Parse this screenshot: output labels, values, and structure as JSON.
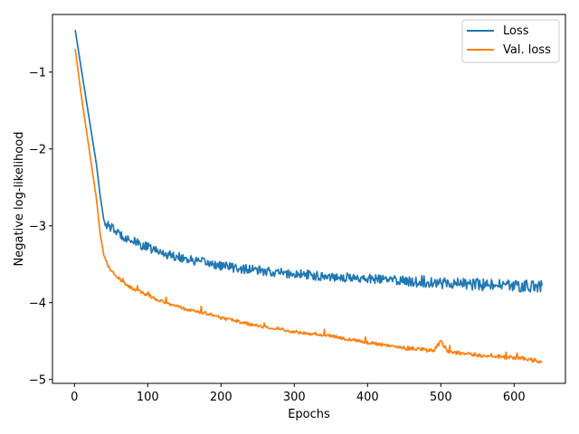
{
  "chart_data": {
    "type": "line",
    "title": "",
    "xlabel": "Epochs",
    "ylabel": "Negative log-likelihood",
    "xlim": [
      -30,
      670
    ],
    "ylim": [
      -5.05,
      -0.25
    ],
    "xticks": [
      0,
      100,
      200,
      300,
      400,
      500,
      600
    ],
    "yticks": [
      -5,
      -4,
      -3,
      -2,
      -1
    ],
    "xtick_labels": [
      "0",
      "100",
      "200",
      "300",
      "400",
      "500",
      "600"
    ],
    "ytick_labels": [
      "−5",
      "−4",
      "−3",
      "−2",
      "−1"
    ],
    "grid": false,
    "legend_position": "top-right",
    "series": [
      {
        "name": "Loss",
        "color": "#1f77b4",
        "x": [
          1,
          10,
          20,
          30,
          35,
          40,
          45,
          50,
          60,
          70,
          80,
          90,
          100,
          110,
          120,
          130,
          140,
          150,
          160,
          170,
          180,
          190,
          200,
          210,
          220,
          230,
          240,
          250,
          260,
          270,
          280,
          290,
          300,
          310,
          320,
          330,
          340,
          350,
          360,
          370,
          380,
          390,
          400,
          410,
          420,
          430,
          440,
          450,
          460,
          470,
          480,
          490,
          500,
          510,
          520,
          530,
          540,
          550,
          560,
          570,
          580,
          590,
          600,
          610,
          620,
          630,
          638
        ],
        "values": [
          -0.45,
          -1.0,
          -1.6,
          -2.2,
          -2.6,
          -2.92,
          -3.0,
          -3.02,
          -3.1,
          -3.15,
          -3.2,
          -3.25,
          -3.28,
          -3.32,
          -3.35,
          -3.38,
          -3.4,
          -3.42,
          -3.45,
          -3.47,
          -3.48,
          -3.5,
          -3.52,
          -3.53,
          -3.55,
          -3.56,
          -3.57,
          -3.58,
          -3.6,
          -3.6,
          -3.61,
          -3.62,
          -3.63,
          -3.63,
          -3.64,
          -3.65,
          -3.65,
          -3.66,
          -3.66,
          -3.67,
          -3.68,
          -3.68,
          -3.69,
          -3.69,
          -3.7,
          -3.7,
          -3.71,
          -3.71,
          -3.72,
          -3.72,
          -3.73,
          -3.73,
          -3.74,
          -3.74,
          -3.75,
          -3.75,
          -3.76,
          -3.76,
          -3.77,
          -3.77,
          -3.77,
          -3.78,
          -3.78,
          -3.78,
          -3.79,
          -3.79,
          -3.78
        ],
        "noise": 0.06
      },
      {
        "name": "Val. loss",
        "color": "#ff7f0e",
        "x": [
          1,
          10,
          20,
          30,
          35,
          40,
          45,
          50,
          60,
          70,
          80,
          90,
          100,
          110,
          120,
          130,
          140,
          150,
          160,
          170,
          180,
          190,
          200,
          210,
          220,
          230,
          240,
          250,
          260,
          270,
          280,
          290,
          300,
          310,
          320,
          330,
          340,
          350,
          360,
          370,
          380,
          390,
          400,
          410,
          420,
          430,
          440,
          450,
          460,
          470,
          480,
          490,
          500,
          510,
          520,
          530,
          540,
          550,
          560,
          570,
          580,
          590,
          600,
          610,
          620,
          630,
          638
        ],
        "values": [
          -0.7,
          -1.35,
          -2.0,
          -2.65,
          -3.1,
          -3.38,
          -3.5,
          -3.58,
          -3.68,
          -3.76,
          -3.82,
          -3.86,
          -3.9,
          -3.95,
          -3.98,
          -4.02,
          -4.05,
          -4.08,
          -4.1,
          -4.12,
          -4.14,
          -4.16,
          -4.2,
          -4.22,
          -4.24,
          -4.26,
          -4.28,
          -4.3,
          -4.32,
          -4.33,
          -4.34,
          -4.36,
          -4.38,
          -4.39,
          -4.4,
          -4.41,
          -4.42,
          -4.44,
          -4.45,
          -4.47,
          -4.48,
          -4.5,
          -4.52,
          -4.53,
          -4.55,
          -4.56,
          -4.58,
          -4.59,
          -4.6,
          -4.6,
          -4.62,
          -4.63,
          -4.5,
          -4.64,
          -4.65,
          -4.66,
          -4.67,
          -4.68,
          -4.69,
          -4.68,
          -4.7,
          -4.71,
          -4.72,
          -4.72,
          -4.74,
          -4.75,
          -4.78
        ],
        "noise": 0.02
      }
    ]
  }
}
